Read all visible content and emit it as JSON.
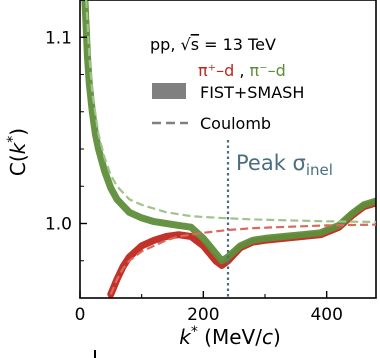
{
  "chart_data": {
    "type": "line",
    "xlabel": "k* (MeV/c)",
    "xlabel_parts": {
      "var": "k",
      "star": "*",
      "unit": " (MeV/",
      "unit_var": "c",
      "close": ")"
    },
    "ylabel": "C(k*)",
    "ylabel_parts": {
      "pre": "C(",
      "var": "k",
      "star": "*",
      "close": ")"
    },
    "xlim": [
      0,
      480
    ],
    "ylim": [
      0.96,
      1.12
    ],
    "x_ticks": [
      0,
      200,
      400
    ],
    "y_ticks": [
      1.0,
      1.1
    ],
    "x_tick_labels": [
      "0",
      "200",
      "400"
    ],
    "y_tick_labels": [
      "1.0",
      "1.1"
    ],
    "grid": false,
    "legend": {
      "placement": "top-right",
      "system": {
        "text": "pp, ",
        "sqrt_s": "s",
        "eq": " = 13 TeV"
      },
      "pair_plus": {
        "text": "π⁺–d",
        "color": "#c0271d"
      },
      "separator": " , ",
      "pair_minus": {
        "text": "π⁻–d",
        "color": "#5e8e3a"
      },
      "band_label": "FIST+SMASH",
      "line_label": "Coulomb"
    },
    "annotation": {
      "text": "Peak σ",
      "sub": "inel",
      "x": 240,
      "color": "#4a6e80"
    },
    "series": [
      {
        "name": "π⁺–d",
        "style": "band",
        "color": "#c0271d",
        "x": [
          50,
          60,
          70,
          80,
          100,
          120,
          140,
          160,
          180,
          200,
          210,
          220,
          230,
          240,
          260,
          280,
          300,
          330,
          360,
          390,
          420,
          440,
          460,
          480
        ],
        "y": [
          0.962,
          0.97,
          0.977,
          0.982,
          0.988,
          0.991,
          0.993,
          0.994,
          0.993,
          0.988,
          0.984,
          0.98,
          0.9775,
          0.98,
          0.987,
          0.99,
          0.991,
          0.992,
          0.993,
          0.994,
          0.998,
          1.004,
          1.009,
          1.011
        ]
      },
      {
        "name": "π⁻–d",
        "style": "band",
        "color": "#5e8e3a",
        "x": [
          8,
          10,
          12,
          15,
          20,
          25,
          30,
          40,
          50,
          60,
          80,
          100,
          120,
          140,
          160,
          180,
          200,
          210,
          220,
          230,
          240,
          260,
          280,
          300,
          330,
          360,
          390,
          420,
          440,
          460,
          480
        ],
        "y": [
          1.12,
          1.105,
          1.09,
          1.075,
          1.06,
          1.048,
          1.04,
          1.028,
          1.019,
          1.013,
          1.006,
          1.003,
          1.001,
          1.0,
          0.999,
          0.998,
          0.992,
          0.988,
          0.984,
          0.98,
          0.982,
          0.988,
          0.991,
          0.992,
          0.993,
          0.994,
          0.995,
          0.999,
          1.005,
          1.01,
          1.012
        ]
      },
      {
        "name": "Coulomb π⁺–d",
        "style": "dashed",
        "color": "#d96a5e",
        "x": [
          50,
          60,
          70,
          80,
          100,
          120,
          140,
          160,
          180,
          200,
          240,
          280,
          320,
          360,
          400,
          440,
          480
        ],
        "y": [
          0.962,
          0.97,
          0.976,
          0.98,
          0.985,
          0.988,
          0.991,
          0.993,
          0.994,
          0.995,
          0.9965,
          0.9975,
          0.998,
          0.9985,
          0.999,
          0.9992,
          0.9994
        ]
      },
      {
        "name": "Coulomb π⁻–d",
        "style": "dashed",
        "color": "#9fc38a",
        "x": [
          10,
          15,
          20,
          30,
          40,
          50,
          60,
          80,
          100,
          120,
          140,
          160,
          180,
          200,
          240,
          280,
          320,
          360,
          400,
          440,
          480
        ],
        "y": [
          1.12,
          1.09,
          1.07,
          1.048,
          1.035,
          1.026,
          1.02,
          1.013,
          1.01,
          1.008,
          1.006,
          1.005,
          1.004,
          1.0035,
          1.0028,
          1.0022,
          1.0018,
          1.0015,
          1.0012,
          1.001,
          1.0008
        ]
      }
    ]
  }
}
